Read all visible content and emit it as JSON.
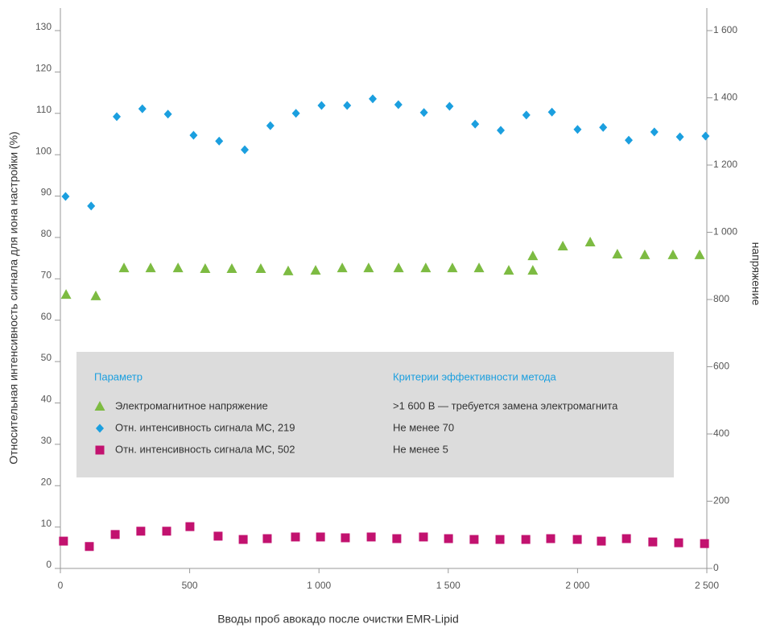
{
  "chart_data": {
    "type": "scatter",
    "y_label": "Относительная интенсивность сигнала для иона настройки (%)",
    "y2_label": "напряжение",
    "x_label": "Вводы проб авокадо после очистки EMR-Lipid",
    "xlim": [
      0,
      2500
    ],
    "xticks": [
      0,
      500,
      {
        "value": 1000,
        "label": "1 000"
      },
      {
        "value": 1500,
        "label": "1 500"
      },
      {
        "value": 2000,
        "label": "2 000"
      },
      {
        "value": 2500,
        "label": "2 500"
      }
    ],
    "ylim": [
      0,
      130
    ],
    "yticks": [
      0,
      10,
      20,
      30,
      40,
      50,
      60,
      70,
      80,
      90,
      100,
      110,
      120,
      130
    ],
    "y2lim": [
      0,
      1600
    ],
    "y2ticks": [
      0,
      200,
      400,
      600,
      800,
      {
        "value": 1000,
        "label": "1 000"
      },
      {
        "value": 1200,
        "label": "1 200"
      },
      {
        "value": 1400,
        "label": "1 400"
      },
      {
        "value": 1600,
        "label": "1 600"
      }
    ],
    "legend_headers": [
      "Параметр",
      "Критерии эффективности метода"
    ],
    "series": [
      {
        "name": "Электромагнитное напряжение",
        "criterion": ">1 600 В — требуется замена электромагнита",
        "color": "#7dbb42",
        "marker": "triangle",
        "axis": "y2",
        "x": [
          22,
          137,
          246,
          349,
          455,
          560,
          663,
          775,
          881,
          987,
          1090,
          1192,
          1308,
          1413,
          1516,
          1619,
          1734,
          1827,
          1827,
          1943,
          2049,
          2154,
          2260,
          2369,
          2472
        ],
        "values": [
          814,
          810,
          893,
          893,
          893,
          891,
          891,
          891,
          884,
          886,
          893,
          893,
          893,
          893,
          893,
          893,
          886,
          886,
          929,
          958,
          970,
          934,
          932,
          932,
          932
        ]
      },
      {
        "name": "Отн. интенсивность сигнала МС, 219",
        "criterion": "Не менее 70",
        "color": "#1b9fdf",
        "marker": "diamond",
        "x": [
          20,
          119,
          218,
          317,
          416,
          515,
          614,
          713,
          812,
          911,
          1010,
          1109,
          1208,
          1307,
          1406,
          1505,
          1604,
          1703,
          1802,
          1901,
          2000,
          2099,
          2198,
          2297,
          2396,
          2495
        ],
        "values": [
          89.9,
          87.6,
          109.2,
          111.1,
          109.8,
          104.7,
          103.3,
          101.2,
          107.0,
          110.0,
          111.9,
          111.9,
          113.5,
          112.1,
          110.2,
          111.7,
          107.4,
          105.9,
          109.6,
          110.3,
          106.1,
          106.6,
          103.5,
          105.5,
          104.3,
          104.5
        ]
      },
      {
        "name": "Отн. интенсивность сигнала МС, 502",
        "criterion": "Не менее 5",
        "color": "#c2126f",
        "marker": "square",
        "x": [
          12,
          112,
          212,
          311,
          411,
          501,
          610,
          707,
          800,
          909,
          1006,
          1102,
          1202,
          1301,
          1404,
          1501,
          1600,
          1700,
          1800,
          1896,
          1999,
          2092,
          2189,
          2291,
          2391,
          2491
        ],
        "values": [
          6.6,
          5.3,
          8.2,
          9.0,
          9.0,
          10.1,
          7.8,
          7.0,
          7.2,
          7.6,
          7.6,
          7.4,
          7.6,
          7.2,
          7.6,
          7.2,
          7.0,
          7.0,
          7.0,
          7.2,
          7.0,
          6.6,
          7.2,
          6.4,
          6.2,
          6.0
        ]
      }
    ]
  }
}
